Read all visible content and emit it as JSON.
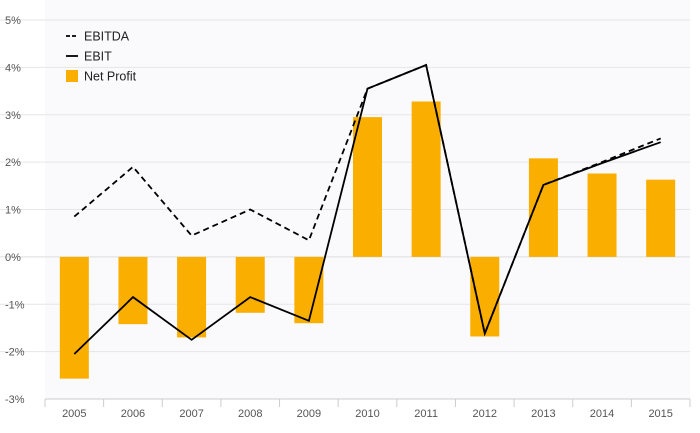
{
  "chart_data": {
    "type": "bar",
    "categories": [
      "2005",
      "2006",
      "2007",
      "2008",
      "2009",
      "2010",
      "2011",
      "2012",
      "2013",
      "2014",
      "2015"
    ],
    "series": [
      {
        "name": "EBITDA",
        "type": "line",
        "style": "dashed",
        "values": [
          0.85,
          1.9,
          0.45,
          1.0,
          0.35,
          3.55,
          4.05,
          -1.62,
          1.52,
          2.0,
          2.5
        ]
      },
      {
        "name": "EBIT",
        "type": "line",
        "style": "solid",
        "values": [
          -2.05,
          -0.85,
          -1.75,
          -0.85,
          -1.35,
          3.55,
          4.05,
          -1.62,
          1.52,
          1.98,
          2.42
        ]
      },
      {
        "name": "Net Profit",
        "type": "bar",
        "values": [
          -2.57,
          -1.42,
          -1.7,
          -1.18,
          -1.4,
          2.95,
          3.28,
          -1.68,
          2.08,
          1.76,
          1.63
        ]
      }
    ],
    "yticks": [
      "5%",
      "4%",
      "3%",
      "2%",
      "1%",
      "0%",
      "-1%",
      "-2%",
      "-3%"
    ],
    "ylim": [
      -3,
      5
    ],
    "xlabel": "",
    "ylabel": "",
    "title": "",
    "grid": true,
    "legend_position": "top-left",
    "colors": {
      "bar": "#f9ae00",
      "line": "#000000",
      "grid": "#e6e6e6",
      "plot_bg": "#fafafc",
      "axis": "#cccccc"
    }
  }
}
